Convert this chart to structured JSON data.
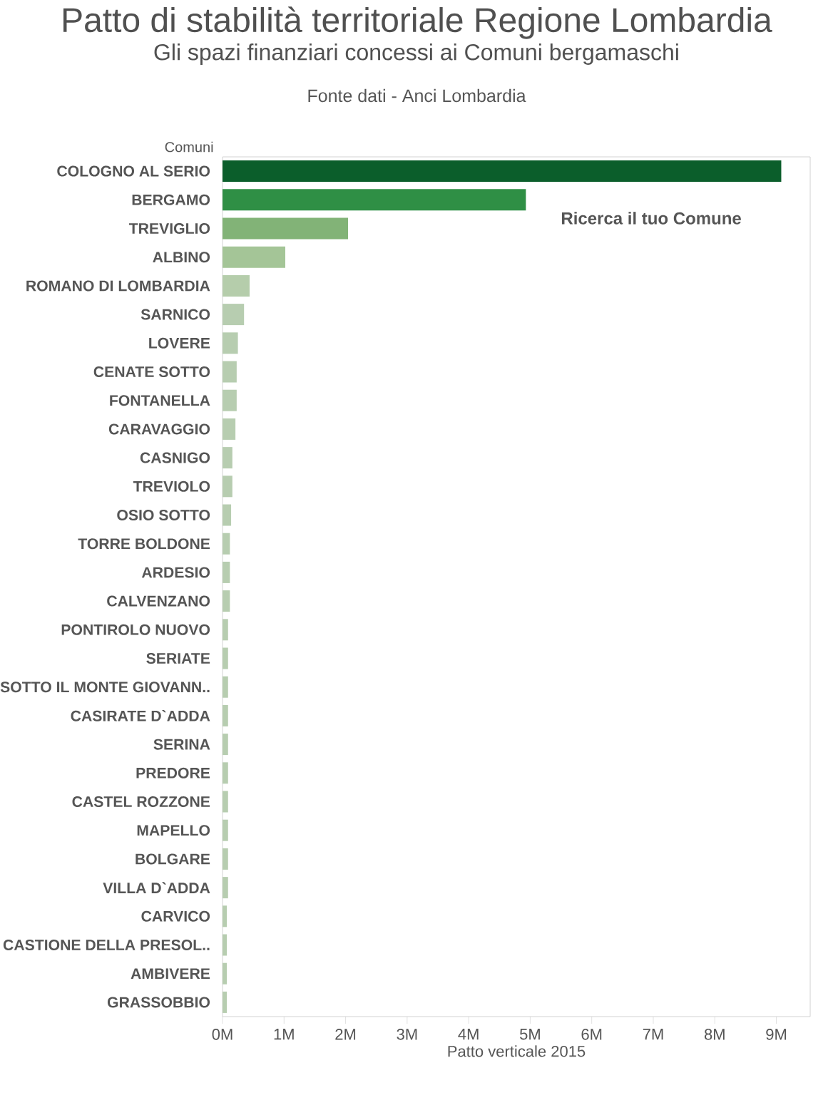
{
  "chart_data": {
    "type": "bar",
    "orientation": "horizontal",
    "title": "Patto di stabilità territoriale Regione Lombardia",
    "subtitle": "Gli spazi finanziari concessi ai Comuni bergamaschi",
    "annotations": [
      "Fonte dati - Anci Lombardia",
      "Ricerca il tuo Comune"
    ],
    "ylabel": "Comuni",
    "xlabel": "Patto verticale 2015",
    "categories": [
      "COLOGNO AL SERIO",
      "BERGAMO",
      "TREVIGLIO",
      "ALBINO",
      "ROMANO DI LOMBARDIA",
      "SARNICO",
      "LOVERE",
      "CENATE SOTTO",
      "FONTANELLA",
      "CARAVAGGIO",
      "CASNIGO",
      "TREVIOLO",
      "OSIO SOTTO",
      "TORRE BOLDONE",
      "ARDESIO",
      "CALVENZANO",
      "PONTIROLO NUOVO",
      "SERIATE",
      "SOTTO IL MONTE GIOVANN..",
      "CASIRATE D`ADDA",
      "SERINA",
      "PREDORE",
      "CASTEL ROZZONE",
      "MAPELLO",
      "BOLGARE",
      "VILLA D`ADDA",
      "CARVICO",
      "CASTIONE DELLA PRESOL..",
      "AMBIVERE",
      "GRASSOBBIO"
    ],
    "values": [
      9.08,
      4.93,
      2.04,
      1.02,
      0.44,
      0.35,
      0.25,
      0.23,
      0.23,
      0.21,
      0.16,
      0.16,
      0.14,
      0.12,
      0.12,
      0.12,
      0.09,
      0.09,
      0.09,
      0.09,
      0.09,
      0.09,
      0.09,
      0.09,
      0.09,
      0.09,
      0.07,
      0.07,
      0.07,
      0.07
    ],
    "colors": [
      "#0b5e2b",
      "#2f8f45",
      "#82b377",
      "#a4c597",
      "#b5cdab",
      "#b7cdb0",
      "#b7cdb0",
      "#b7cdb0",
      "#b7cdb0",
      "#b7cdb0",
      "#b7cdb0",
      "#b7cdb0",
      "#b7cdb0",
      "#b7cdb0",
      "#b7cdb0",
      "#b7cdb0",
      "#b7cdb0",
      "#b7cdb0",
      "#b7cdb0",
      "#b7cdb0",
      "#b7cdb0",
      "#b7cdb0",
      "#b7cdb0",
      "#b7cdb0",
      "#b7cdb0",
      "#b7cdb0",
      "#b7cdb0",
      "#b7cdb0",
      "#b7cdb0",
      "#b7cdb0"
    ],
    "xlim": [
      0,
      9.55
    ],
    "xticks": [
      {
        "value": 0,
        "label": "0M"
      },
      {
        "value": 1,
        "label": "1M"
      },
      {
        "value": 2,
        "label": "2M"
      },
      {
        "value": 3,
        "label": "3M"
      },
      {
        "value": 4,
        "label": "4M"
      },
      {
        "value": 5,
        "label": "5M"
      },
      {
        "value": 6,
        "label": "6M"
      },
      {
        "value": 7,
        "label": "7M"
      },
      {
        "value": 8,
        "label": "8M"
      },
      {
        "value": 9,
        "label": "9M"
      }
    ]
  }
}
